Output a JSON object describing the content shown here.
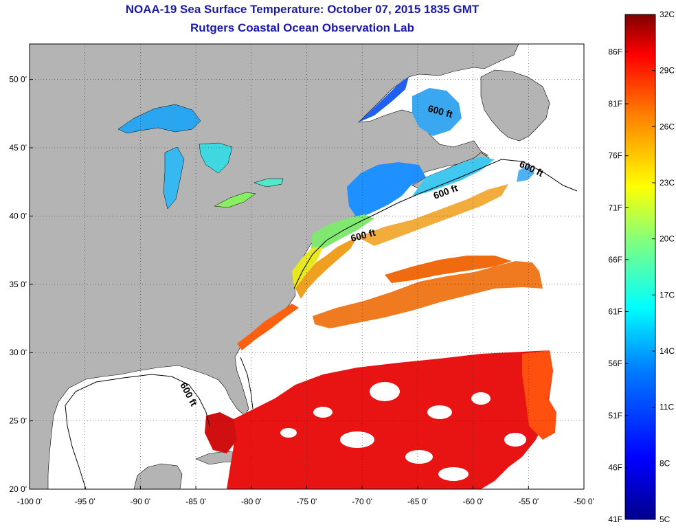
{
  "header": {
    "title": "NOAA-19 Sea Surface Temperature:  October 07, 2015 1835 GMT",
    "subtitle": "Rutgers Coastal Ocean Observation Lab"
  },
  "map": {
    "lon_range": [
      -100,
      -50
    ],
    "lat_range": [
      20,
      52.6
    ],
    "lon_ticks": [
      "-100 0'",
      "-95 0'",
      "-90 0'",
      "-85 0'",
      "-80 0'",
      "-75 0'",
      "-70 0'",
      "-65 0'",
      "-60 0'",
      "-55 0'",
      "-50 0'"
    ],
    "lon_values": [
      -100,
      -95,
      -90,
      -85,
      -80,
      -75,
      -70,
      -65,
      -60,
      -55,
      -50
    ],
    "lat_ticks": [
      "50 0'",
      "45 0'",
      "40 0'",
      "35 0'",
      "30 0'",
      "25 0'",
      "20 0'"
    ],
    "lat_values": [
      50,
      45,
      40,
      35,
      30,
      25,
      20
    ],
    "grid": "dotted",
    "land_color": "#b4b4b4",
    "cloud_color": "#ffffff",
    "contour_label": "600 ft"
  },
  "colorbar": {
    "min_c": 5,
    "max_c": 32,
    "celsius_labels": [
      "32C",
      "29C",
      "26C",
      "23C",
      "20C",
      "17C",
      "14C",
      "11C",
      "8C",
      "5C"
    ],
    "celsius_values": [
      32,
      29,
      26,
      23,
      20,
      17,
      14,
      11,
      8,
      5
    ],
    "fahrenheit_labels": [
      "86F",
      "81F",
      "76F",
      "71F",
      "66F",
      "61F",
      "56F",
      "51F",
      "46F",
      "41F"
    ],
    "fahrenheit_values": [
      86,
      81,
      76,
      71,
      66,
      61,
      56,
      51,
      46,
      41
    ],
    "colors": [
      "#00008c",
      "#0000ff",
      "#0080ff",
      "#00ffff",
      "#80ff80",
      "#ffff00",
      "#ff8000",
      "#ff0000",
      "#800000"
    ]
  }
}
